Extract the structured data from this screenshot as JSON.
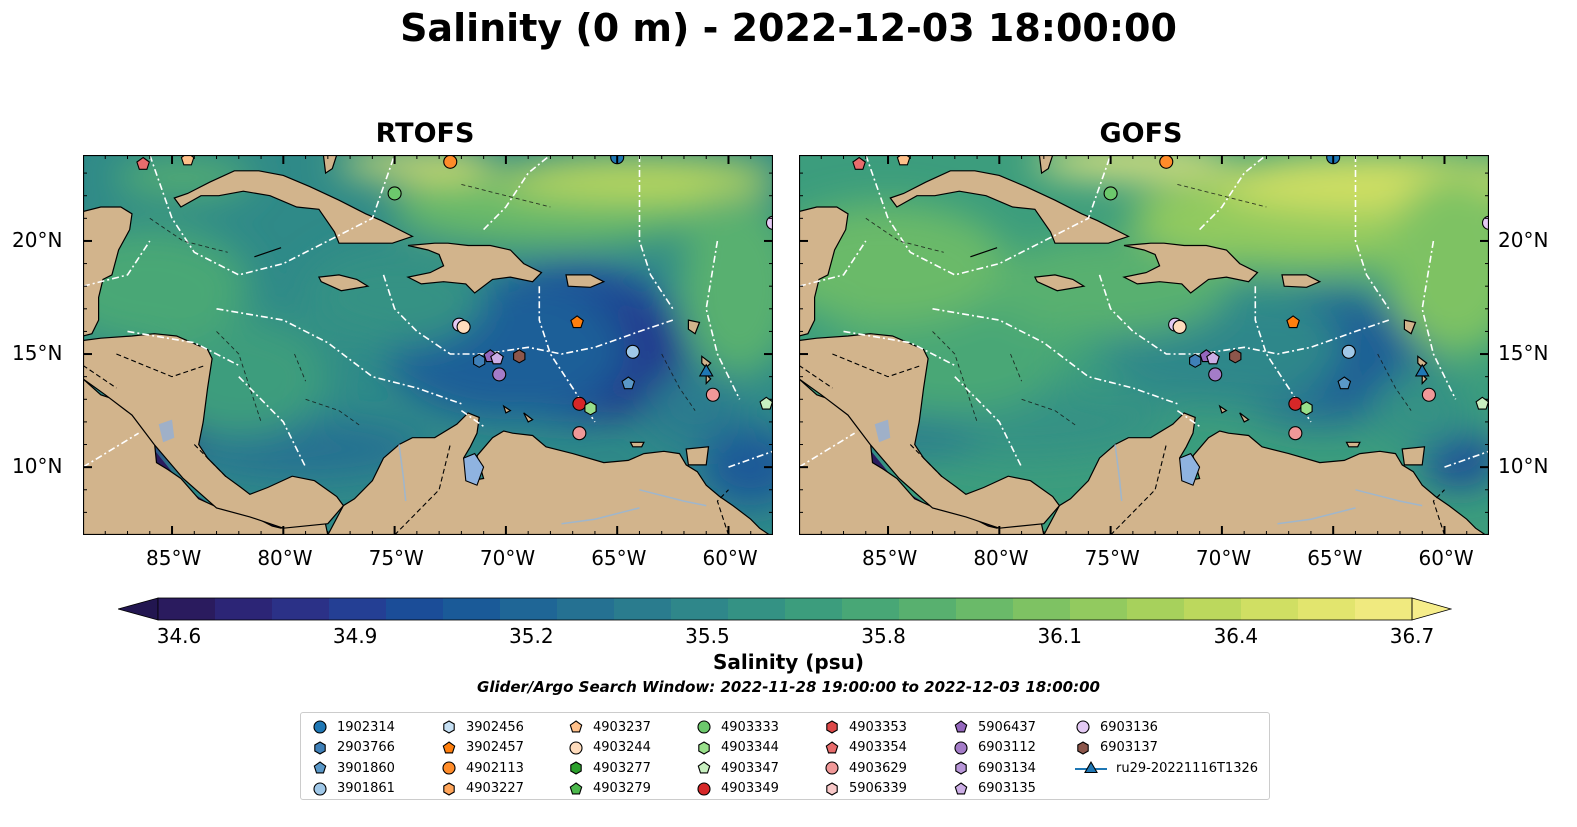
{
  "title": "Salinity (0 m) - 2022-12-03 18:00:00",
  "panels": [
    {
      "name": "RTOFS",
      "palette": "rtofs"
    },
    {
      "name": "GOFS",
      "palette": "gofs"
    }
  ],
  "axes": {
    "lon_ticks": [
      "85°W",
      "80°W",
      "75°W",
      "70°W",
      "65°W",
      "60°W"
    ],
    "lat_ticks": [
      "20°N",
      "15°N",
      "10°N"
    ]
  },
  "colorbar": {
    "label": "Salinity (psu)",
    "ticks": [
      "34.6",
      "34.9",
      "35.2",
      "35.5",
      "35.8",
      "36.1",
      "36.4",
      "36.7"
    ],
    "colors": [
      "#2a1b5e",
      "#2c2576",
      "#2b3187",
      "#243f94",
      "#1b4d98",
      "#1a5a98",
      "#1f6696",
      "#257192",
      "#2a7c8e",
      "#2f878a",
      "#349284",
      "#3c9d7d",
      "#48a776",
      "#58b06f",
      "#6aba69",
      "#7ec263",
      "#92ca5f",
      "#a7d15c",
      "#bcd85d",
      "#d0df63",
      "#e2e56e",
      "#f0ea7f"
    ],
    "over_color": "#f6ed8a",
    "under_color": "#221650"
  },
  "search_window": "Glider/Argo Search Window: 2022-11-28 19:00:00 to 2022-12-03 18:00:00",
  "legend": [
    {
      "id": "1902314",
      "marker": "circle",
      "color": "#1f77b4"
    },
    {
      "id": "2903766",
      "marker": "hexagon",
      "color": "#3f80b8"
    },
    {
      "id": "3901860",
      "marker": "pentagon",
      "color": "#5a98c8"
    },
    {
      "id": "3901861",
      "marker": "circle",
      "color": "#a0c8e8"
    },
    {
      "id": "3902456",
      "marker": "hexagon",
      "color": "#c6e0f4"
    },
    {
      "id": "3902457",
      "marker": "pentagon",
      "color": "#ff7f0e"
    },
    {
      "id": "4902113",
      "marker": "circle",
      "color": "#ff8c2a"
    },
    {
      "id": "4903227",
      "marker": "hexagon",
      "color": "#ffa55a"
    },
    {
      "id": "4903237",
      "marker": "pentagon",
      "color": "#ffc08a"
    },
    {
      "id": "4903244",
      "marker": "circle",
      "color": "#ffdcbc"
    },
    {
      "id": "4903277",
      "marker": "hexagon",
      "color": "#2ca02c"
    },
    {
      "id": "4903279",
      "marker": "pentagon",
      "color": "#4cb84c"
    },
    {
      "id": "4903333",
      "marker": "circle",
      "color": "#6cc86c"
    },
    {
      "id": "4903344",
      "marker": "hexagon",
      "color": "#98df8a"
    },
    {
      "id": "4903347",
      "marker": "pentagon",
      "color": "#c8f0c0"
    },
    {
      "id": "4903349",
      "marker": "circle",
      "color": "#d62728"
    },
    {
      "id": "4903353",
      "marker": "hexagon",
      "color": "#dc4848"
    },
    {
      "id": "4903354",
      "marker": "pentagon",
      "color": "#e86c6c"
    },
    {
      "id": "4903629",
      "marker": "circle",
      "color": "#f09898"
    },
    {
      "id": "5906339",
      "marker": "hexagon",
      "color": "#f8c8c8"
    },
    {
      "id": "5906437",
      "marker": "pentagon",
      "color": "#9467bd"
    },
    {
      "id": "6903112",
      "marker": "circle",
      "color": "#a47cc8"
    },
    {
      "id": "6903134",
      "marker": "hexagon",
      "color": "#b896d8"
    },
    {
      "id": "6903135",
      "marker": "pentagon",
      "color": "#ccaee6"
    },
    {
      "id": "6903136",
      "marker": "circle",
      "color": "#e4caf4"
    },
    {
      "id": "6903137",
      "marker": "hexagon",
      "color": "#8c564b"
    },
    {
      "id": "ru29-20221116T1326",
      "marker": "triangle-line",
      "color": "#1f77b4"
    }
  ],
  "floats": [
    {
      "lon": -86.3,
      "lat": 23.4,
      "marker": "pentagon",
      "color": "#e86c6c"
    },
    {
      "lon": -84.3,
      "lat": 23.6,
      "marker": "pentagon",
      "color": "#ffc08a"
    },
    {
      "lon": -75.0,
      "lat": 22.1,
      "marker": "circle",
      "color": "#6cc86c"
    },
    {
      "lon": -72.5,
      "lat": 23.5,
      "marker": "circle",
      "color": "#ff8c2a"
    },
    {
      "lon": -65.0,
      "lat": 23.7,
      "marker": "circle",
      "color": "#1f77b4"
    },
    {
      "lon": -58.0,
      "lat": 20.8,
      "marker": "circle",
      "color": "#e4caf4"
    },
    {
      "lon": -72.1,
      "lat": 16.3,
      "marker": "circle",
      "color": "#e4caf4"
    },
    {
      "lon": -71.9,
      "lat": 16.2,
      "marker": "circle",
      "color": "#ffdcbc"
    },
    {
      "lon": -66.8,
      "lat": 16.4,
      "marker": "pentagon",
      "color": "#ff7f0e"
    },
    {
      "lon": -71.2,
      "lat": 14.7,
      "marker": "hexagon",
      "color": "#3f80b8"
    },
    {
      "lon": -70.7,
      "lat": 14.9,
      "marker": "pentagon",
      "color": "#9467bd"
    },
    {
      "lon": -70.4,
      "lat": 14.8,
      "marker": "pentagon",
      "color": "#ccaee6"
    },
    {
      "lon": -70.3,
      "lat": 14.1,
      "marker": "circle",
      "color": "#a47cc8"
    },
    {
      "lon": -69.4,
      "lat": 14.9,
      "marker": "hexagon",
      "color": "#8c564b"
    },
    {
      "lon": -64.3,
      "lat": 15.1,
      "marker": "circle",
      "color": "#a0c8e8"
    },
    {
      "lon": -64.5,
      "lat": 13.7,
      "marker": "pentagon",
      "color": "#5a98c8"
    },
    {
      "lon": -61.0,
      "lat": 14.2,
      "marker": "triangle",
      "color": "#1f77b4"
    },
    {
      "lon": -60.7,
      "lat": 13.2,
      "marker": "circle",
      "color": "#f09898"
    },
    {
      "lon": -58.3,
      "lat": 12.8,
      "marker": "pentagon",
      "color": "#c8f0c0"
    },
    {
      "lon": -66.7,
      "lat": 12.8,
      "marker": "circle",
      "color": "#d62728"
    },
    {
      "lon": -66.2,
      "lat": 12.6,
      "marker": "hexagon",
      "color": "#98df8a"
    },
    {
      "lon": -66.7,
      "lat": 11.5,
      "marker": "circle",
      "color": "#f09898"
    }
  ]
}
